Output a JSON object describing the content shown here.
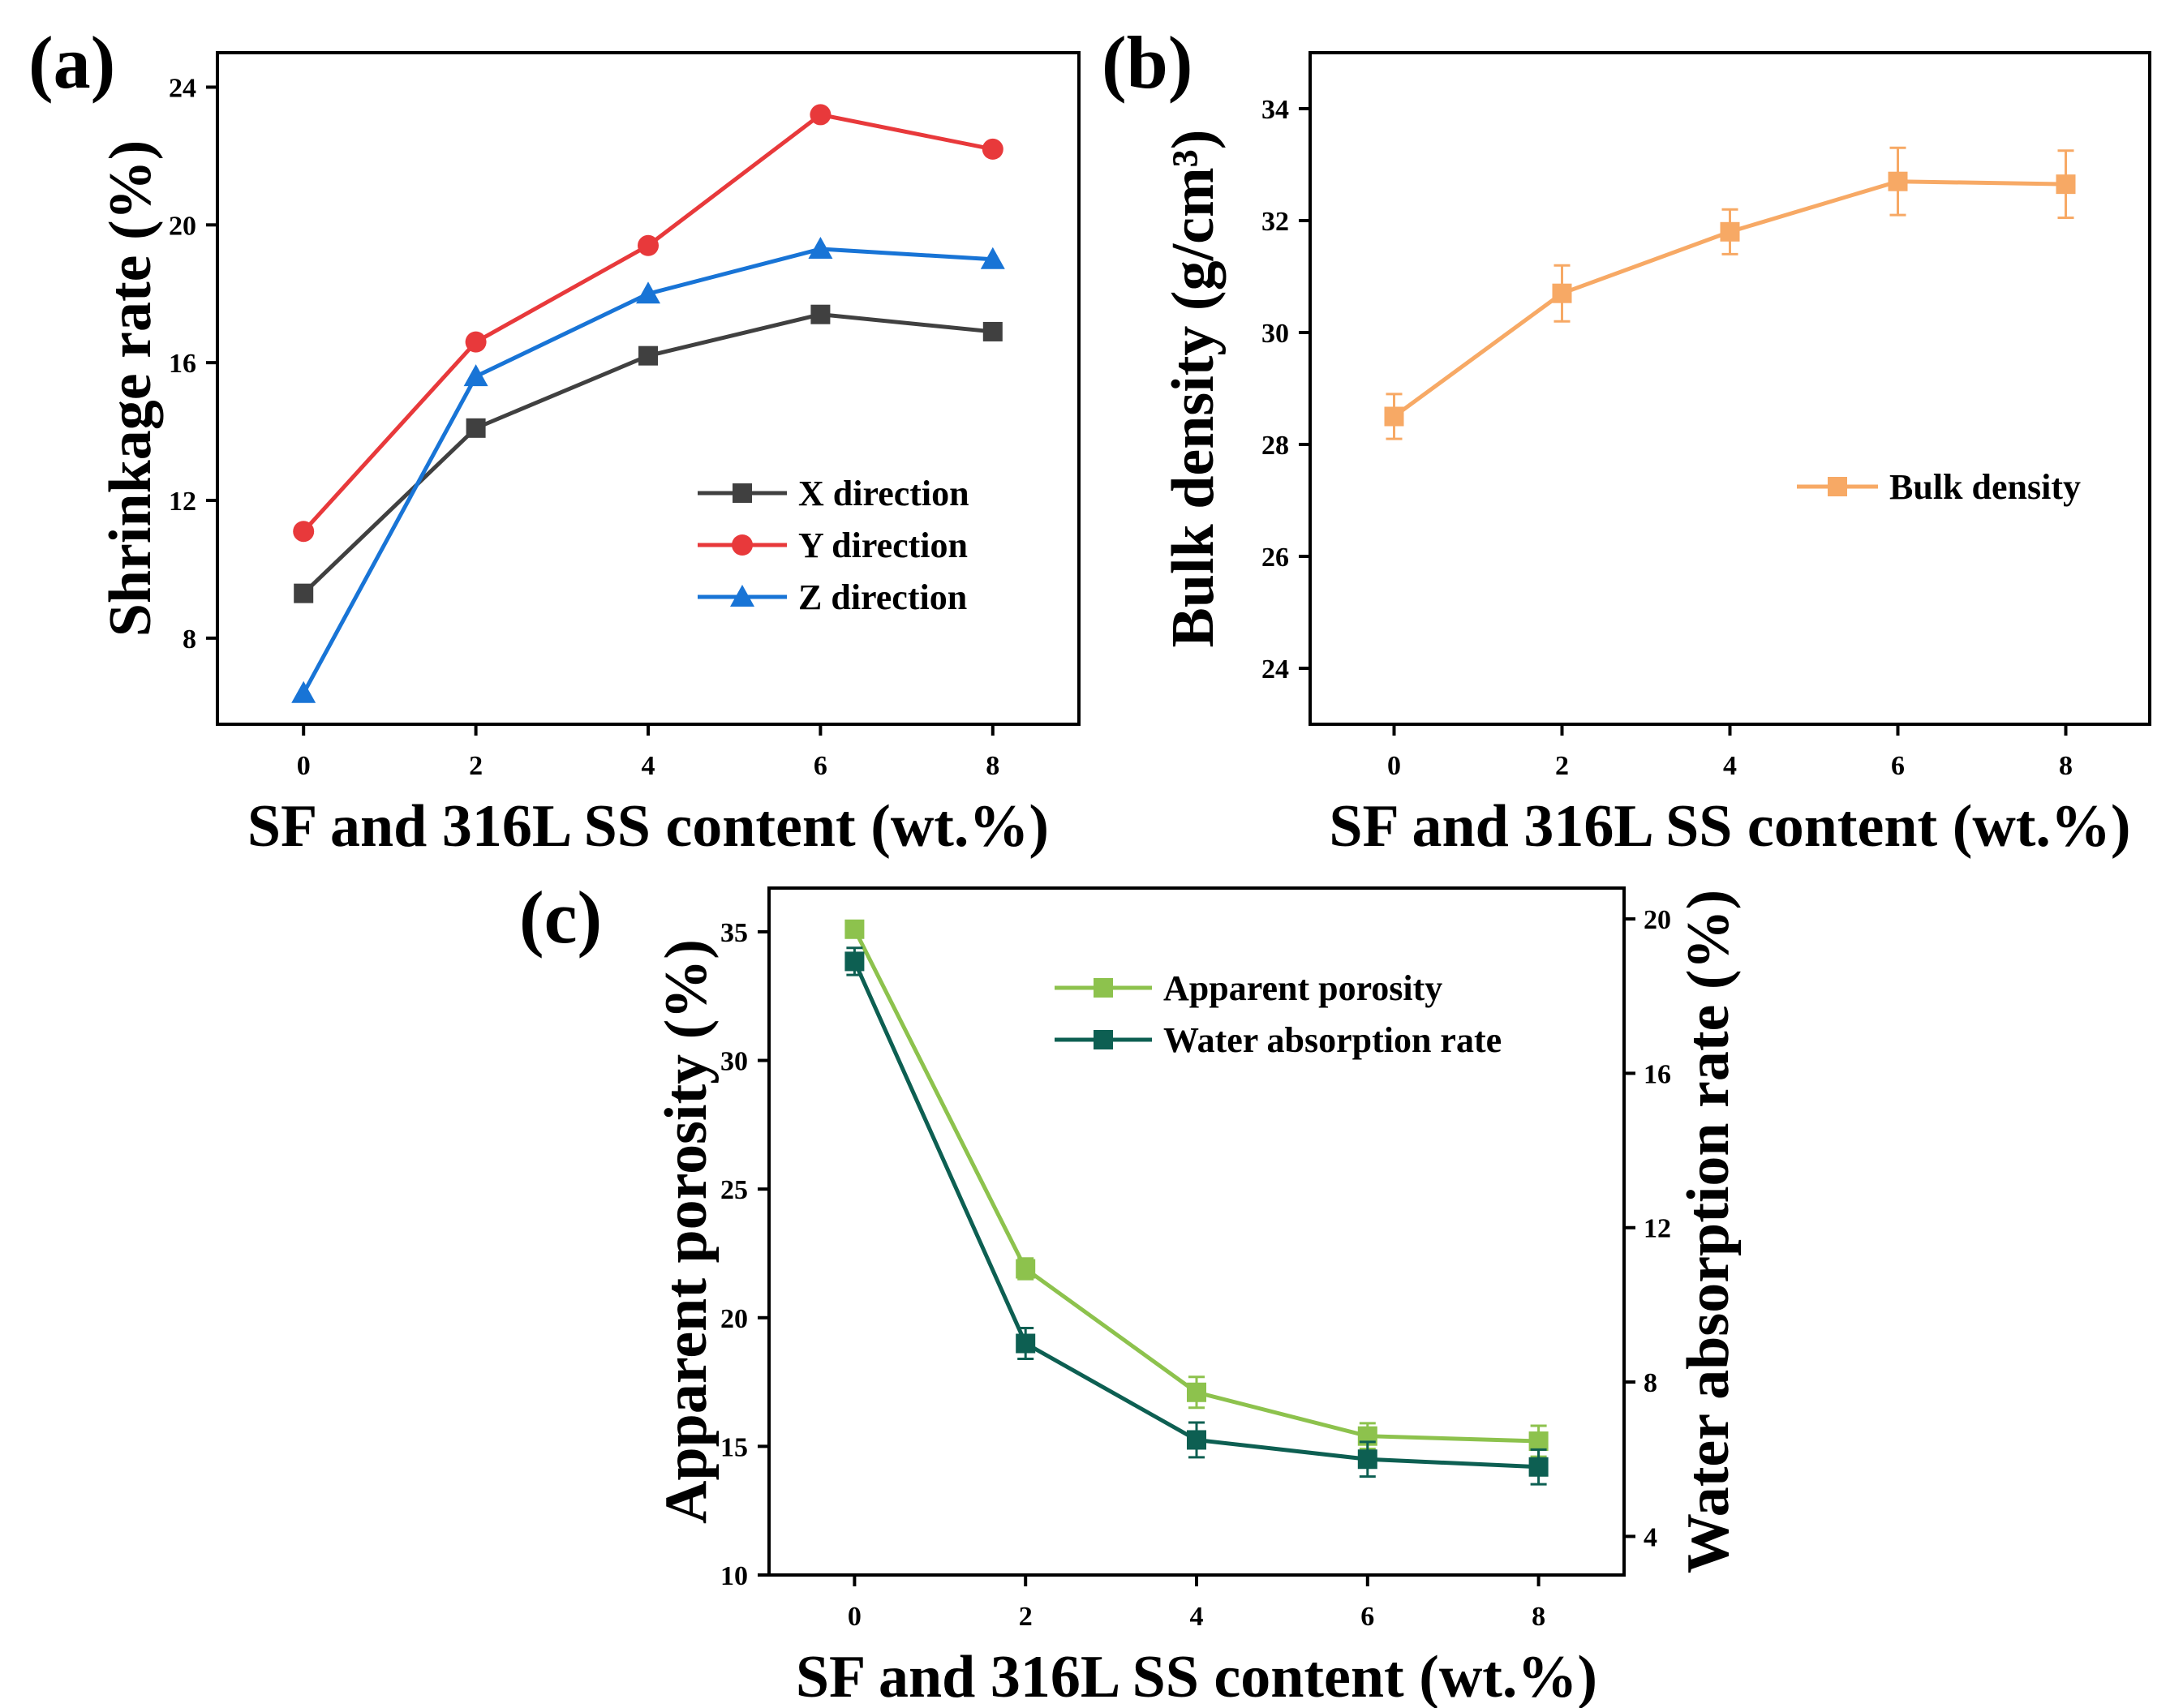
{
  "chart_data": [
    {
      "id": "a",
      "panel_label": "(a)",
      "type": "line",
      "xlabel": "SF and 316L SS content (wt.%)",
      "ylabel": "Shrinkage rate (%)",
      "x": [
        0,
        2,
        4,
        6,
        8
      ],
      "xticks": [
        "0",
        "2",
        "4",
        "6",
        "8"
      ],
      "xlim": [
        -1,
        9
      ],
      "yticks": [
        "8",
        "12",
        "16",
        "20",
        "24"
      ],
      "ytick_values": [
        8,
        12,
        16,
        20,
        24
      ],
      "ylim": [
        5.5,
        25
      ],
      "legend_position": "center-right",
      "series": [
        {
          "name": "X direction",
          "color": "#404040",
          "marker": "square",
          "values": [
            9.3,
            14.1,
            16.2,
            17.4,
            16.9
          ]
        },
        {
          "name": "Y direction",
          "color": "#e8393b",
          "marker": "circle",
          "values": [
            11.1,
            16.6,
            19.4,
            23.2,
            22.2
          ]
        },
        {
          "name": "Z direction",
          "color": "#1874d6",
          "marker": "triangle",
          "values": [
            6.4,
            15.6,
            18.0,
            19.3,
            19.0
          ]
        }
      ]
    },
    {
      "id": "b",
      "panel_label": "(b)",
      "type": "line",
      "xlabel": "SF and 316L SS content (wt.%)",
      "ylabel": "Bulk density (g/cm³)",
      "x": [
        0,
        2,
        4,
        6,
        8
      ],
      "xticks": [
        "0",
        "2",
        "4",
        "6",
        "8"
      ],
      "xlim": [
        -1,
        9
      ],
      "yticks": [
        "24",
        "26",
        "28",
        "30",
        "32",
        "34"
      ],
      "ytick_values": [
        24,
        26,
        28,
        30,
        32,
        34
      ],
      "ylim": [
        23,
        35
      ],
      "legend_position": "center-right",
      "series": [
        {
          "name": "Bulk density",
          "color": "#f7a965",
          "marker": "square",
          "values": [
            28.5,
            30.7,
            31.8,
            32.7,
            32.65
          ],
          "errors": [
            0.4,
            0.5,
            0.4,
            0.6,
            0.6
          ]
        }
      ]
    },
    {
      "id": "c",
      "panel_label": "(c)",
      "type": "line",
      "xlabel": "SF and 316L SS content (wt.%)",
      "ylabel": "Apparent porosity (%)",
      "y2label": "Water absorption rate (%)",
      "x": [
        0,
        2,
        4,
        6,
        8
      ],
      "xticks": [
        "0",
        "2",
        "4",
        "6",
        "8"
      ],
      "xlim": [
        -1,
        9
      ],
      "yticks": [
        "10",
        "15",
        "20",
        "25",
        "30",
        "35"
      ],
      "ytick_values": [
        10,
        15,
        20,
        25,
        30,
        35
      ],
      "ylim": [
        10,
        36.7
      ],
      "y2ticks": [
        "4",
        "8",
        "12",
        "16",
        "20"
      ],
      "y2tick_values": [
        4,
        8,
        12,
        16,
        20
      ],
      "y2lim": [
        3,
        20.8
      ],
      "legend_position": "top-right",
      "series": [
        {
          "name": "Apparent porosity",
          "color": "#8dc24d",
          "marker": "square",
          "axis": "left",
          "values": [
            35.1,
            21.9,
            17.1,
            15.4,
            15.2
          ],
          "errors": [
            0.3,
            0.4,
            0.6,
            0.5,
            0.6
          ]
        },
        {
          "name": "Water absorption rate",
          "color": "#0d5f52",
          "marker": "square",
          "axis": "right",
          "values": [
            18.9,
            9.0,
            6.5,
            6.0,
            5.8
          ],
          "errors": [
            0.35,
            0.4,
            0.45,
            0.45,
            0.45
          ]
        }
      ]
    }
  ]
}
